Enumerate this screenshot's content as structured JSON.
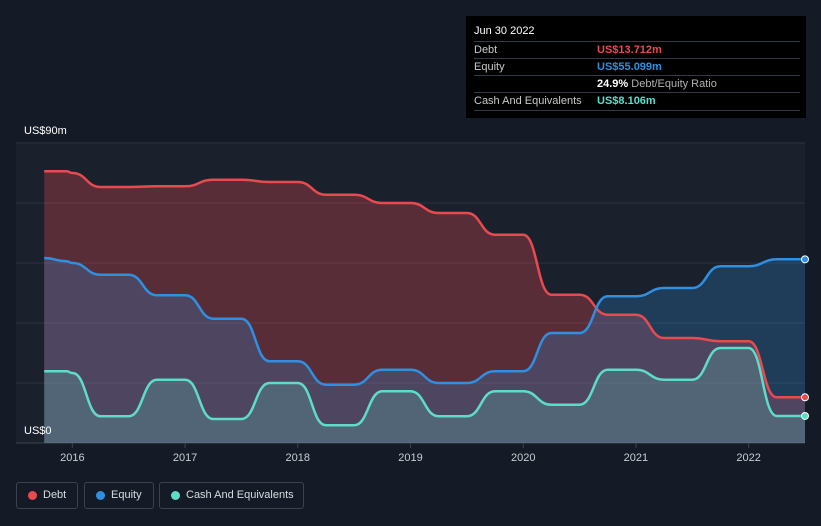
{
  "chart_data": {
    "type": "area",
    "x": [
      2015.75,
      2015.95,
      2016.0,
      2016.25,
      2016.5,
      2016.75,
      2017.0,
      2017.25,
      2017.5,
      2017.75,
      2018.0,
      2018.25,
      2018.5,
      2018.75,
      2019.0,
      2019.25,
      2019.5,
      2019.75,
      2020.0,
      2020.25,
      2020.5,
      2020.75,
      2021.0,
      2021.25,
      2021.5,
      2021.75,
      2022.0,
      2022.25,
      2022.5
    ],
    "series": [
      {
        "name": "Debt",
        "color": "#e84a50",
        "values": [
          81.5,
          81.5,
          81.0,
          76.8,
          76.8,
          77.0,
          77.0,
          79.0,
          79.0,
          78.3,
          78.3,
          74.5,
          74.5,
          72.0,
          72.0,
          69.0,
          69.0,
          62.5,
          62.5,
          44.5,
          44.5,
          38.5,
          38.5,
          31.5,
          31.5,
          30.5,
          30.5,
          13.712,
          13.712
        ]
      },
      {
        "name": "Equity",
        "color": "#2f8fe0",
        "values": [
          55.5,
          54.5,
          54.0,
          50.5,
          50.5,
          44.3,
          44.3,
          37.3,
          37.3,
          24.5,
          24.5,
          17.5,
          17.5,
          22.0,
          22.0,
          18.0,
          18.0,
          21.5,
          21.5,
          33.0,
          33.0,
          44.0,
          44.0,
          46.5,
          46.5,
          53.0,
          53.0,
          55.099,
          55.099
        ]
      },
      {
        "name": "Cash And Equivalents",
        "color": "#5fdcc8",
        "values": [
          21.5,
          21.5,
          21.0,
          8.0,
          8.0,
          19.0,
          19.0,
          7.2,
          7.2,
          18.0,
          18.0,
          5.3,
          5.3,
          15.5,
          15.5,
          8.0,
          8.0,
          15.5,
          15.5,
          11.5,
          11.5,
          22.0,
          22.0,
          19.0,
          19.0,
          28.5,
          28.5,
          8.106,
          8.106
        ]
      }
    ],
    "xticks": [
      "2016",
      "2017",
      "2018",
      "2019",
      "2020",
      "2021",
      "2022"
    ],
    "xtick_values": [
      2016,
      2017,
      2018,
      2019,
      2020,
      2021,
      2022
    ],
    "xlim": [
      2015.5,
      2022.5
    ],
    "ylim": [
      0,
      90
    ],
    "y_top_label": "US$90m",
    "y_bottom_label": "US$0",
    "grid": true,
    "legend_position": "bottom-left"
  },
  "tooltip": {
    "date": "Jun 30 2022",
    "rows": [
      {
        "label": "Debt",
        "value": "US$13.712m",
        "color": "#e84a50"
      },
      {
        "label": "Equity",
        "value": "US$55.099m",
        "color": "#2f8fe0"
      },
      {
        "ratio_pct": "24.9%",
        "ratio_text": "Debt/Equity Ratio"
      },
      {
        "label": "Cash And Equivalents",
        "value": "US$8.106m",
        "color": "#5fdcc8"
      }
    ]
  },
  "legend": [
    {
      "label": "Debt",
      "color": "#e84a50"
    },
    {
      "label": "Equity",
      "color": "#2f8fe0"
    },
    {
      "label": "Cash And Equivalents",
      "color": "#5fdcc8"
    }
  ]
}
